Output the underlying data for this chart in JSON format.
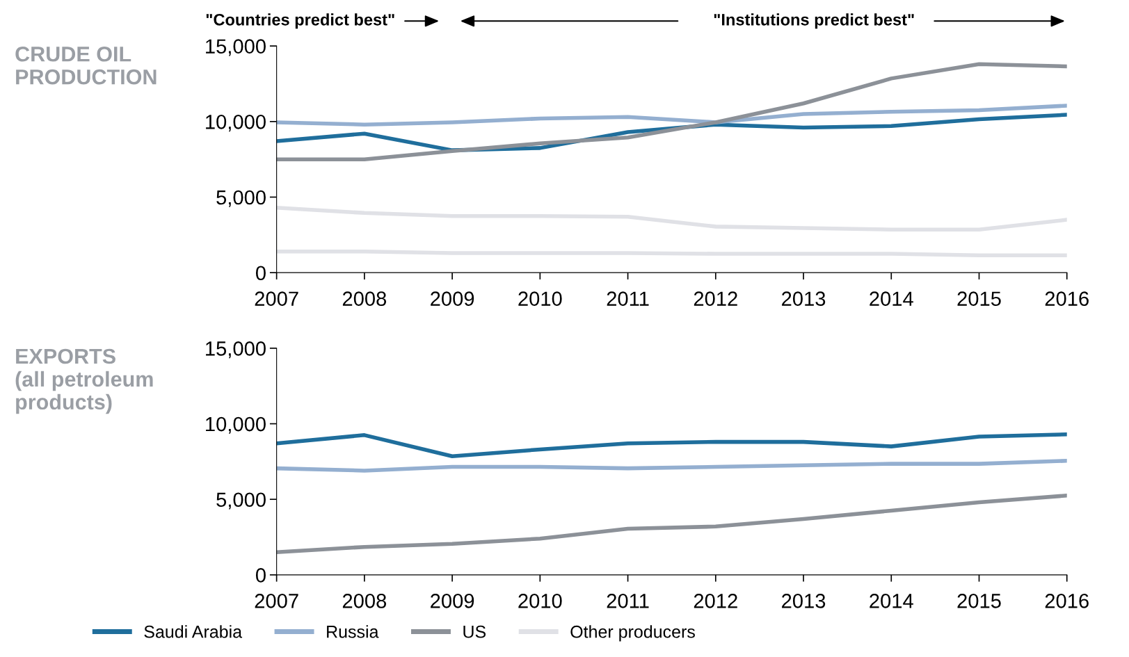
{
  "chart_data": [
    {
      "type": "line",
      "title": "CRUDE OIL\nPRODUCTION",
      "x": [
        2007,
        2008,
        2009,
        2010,
        2011,
        2012,
        2013,
        2014,
        2015,
        2016
      ],
      "xlim": [
        2007,
        2016
      ],
      "xticks": [
        2007,
        2008,
        2009,
        2010,
        2011,
        2012,
        2013,
        2014,
        2015,
        2016
      ],
      "ylim": [
        0,
        15000
      ],
      "yticks": [
        {
          "value": 0,
          "label": "0"
        },
        {
          "value": 5000,
          "label": "5,000"
        },
        {
          "value": 10000,
          "label": "10,000"
        },
        {
          "value": 15000,
          "label": "15,000"
        }
      ],
      "grid": false,
      "legend": "bottom",
      "annotations": [
        "\"Countries predict best\"",
        "\"Institutions predict best\""
      ],
      "series": [
        {
          "name": "Saudi Arabia",
          "color": "#1f6e9c",
          "values": [
            8700,
            9200,
            8100,
            8250,
            9300,
            9800,
            9600,
            9700,
            10150,
            10450
          ]
        },
        {
          "name": "Russia",
          "color": "#94afd0",
          "values": [
            9950,
            9800,
            9950,
            10200,
            10300,
            9950,
            10500,
            10650,
            10750,
            11050
          ]
        },
        {
          "name": "US",
          "color": "#8c9198",
          "values": [
            7500,
            7500,
            8050,
            8550,
            8950,
            9950,
            11200,
            12850,
            13800,
            13650
          ]
        },
        {
          "name": "Other producers",
          "color": "#e0e1e6",
          "values": [
            4300,
            3950,
            3750,
            3750,
            3700,
            3050,
            2950,
            2850,
            2850,
            3500
          ]
        },
        {
          "color": "#e0e1e6",
          "values": [
            1400,
            1400,
            1300,
            1300,
            1300,
            1250,
            1250,
            1250,
            1150,
            1150
          ]
        }
      ]
    },
    {
      "type": "line",
      "title": "EXPORTS\n(all petroleum\nproducts)",
      "x": [
        2007,
        2008,
        2009,
        2010,
        2011,
        2012,
        2013,
        2014,
        2015,
        2016
      ],
      "xlim": [
        2007,
        2016
      ],
      "xticks": [
        2007,
        2008,
        2009,
        2010,
        2011,
        2012,
        2013,
        2014,
        2015,
        2016
      ],
      "ylim": [
        0,
        15000
      ],
      "yticks": [
        {
          "value": 0,
          "label": "0"
        },
        {
          "value": 5000,
          "label": "5,000"
        },
        {
          "value": 10000,
          "label": "10,000"
        },
        {
          "value": 15000,
          "label": "15,000"
        }
      ],
      "grid": false,
      "series": [
        {
          "name": "Saudi Arabia",
          "color": "#1f6e9c",
          "values": [
            8700,
            9250,
            7850,
            8300,
            8700,
            8800,
            8800,
            8500,
            9150,
            9300
          ]
        },
        {
          "name": "Russia",
          "color": "#94afd0",
          "values": [
            7050,
            6900,
            7150,
            7150,
            7050,
            7150,
            7250,
            7350,
            7350,
            7550
          ]
        },
        {
          "name": "US",
          "color": "#8c9198",
          "values": [
            1500,
            1850,
            2050,
            2400,
            3050,
            3200,
            3700,
            4250,
            4800,
            5250
          ]
        }
      ]
    }
  ]
}
